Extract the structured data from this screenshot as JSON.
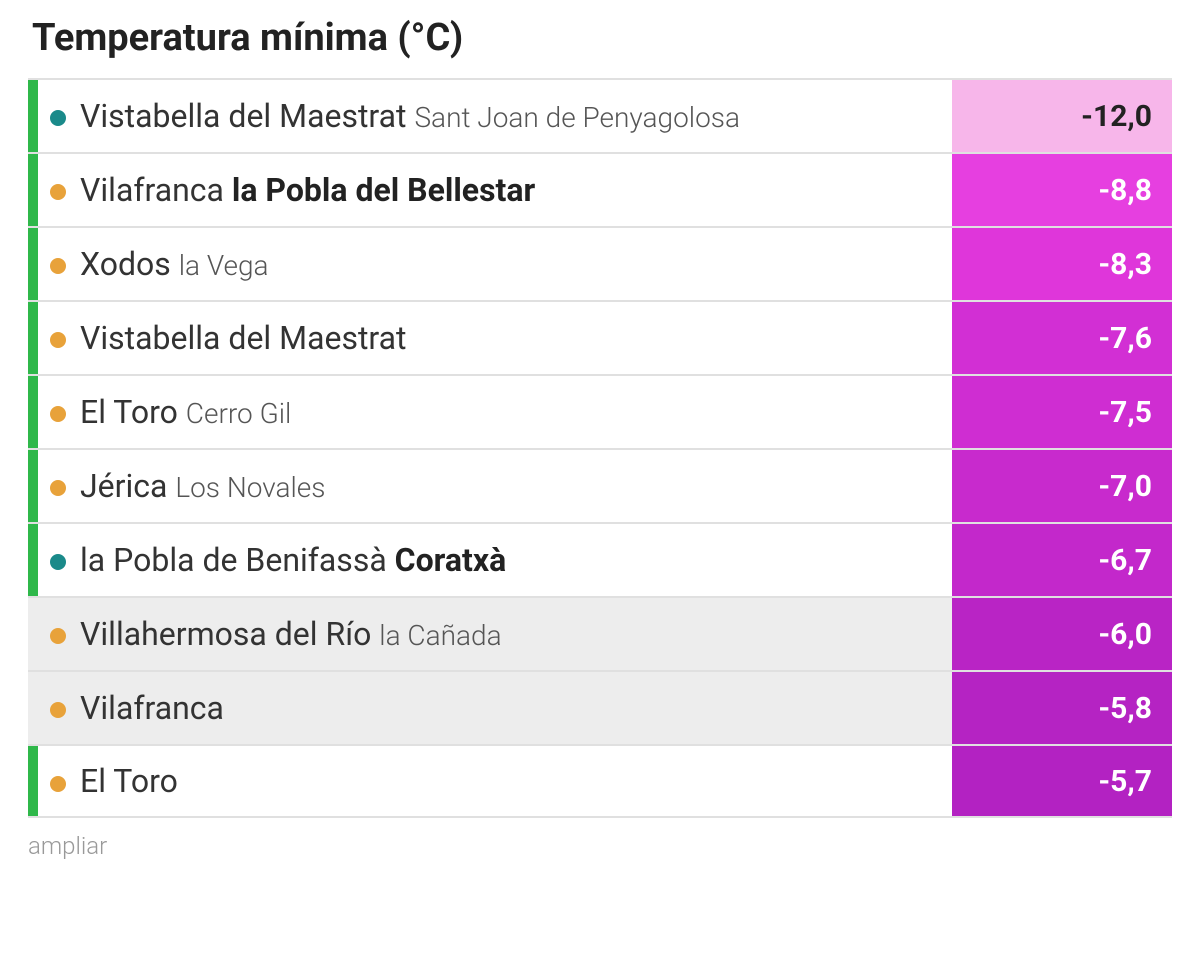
{
  "title": "Temperatura mínima (°C)",
  "footer": "ampliar",
  "colors": {
    "accent_green": "#2fb84a",
    "accent_none": "transparent",
    "bullet_teal": "#1a8a8a",
    "bullet_orange": "#e8a23a",
    "row_bg_white": "#ffffff",
    "row_bg_gray": "#ededed",
    "value_text_dark": "#222222",
    "value_text_white": "#ffffff"
  },
  "value_cell_palette_note": "lighter pink for coldest, darkening magenta toward warmer",
  "rows": [
    {
      "accent": "#2fb84a",
      "bullet": "#1a8a8a",
      "row_bg": "#ffffff",
      "main": "Vistabella del Maestrat",
      "sub": "Sant Joan de Penyagolosa",
      "sub_bold": false,
      "value": "-12,0",
      "value_bg": "#f7b6ea",
      "value_fg": "#222222"
    },
    {
      "accent": "#2fb84a",
      "bullet": "#e8a23a",
      "row_bg": "#ffffff",
      "main": "Vilafranca",
      "sub": "la Pobla del Bellestar",
      "sub_bold": true,
      "value": "-8,8",
      "value_bg": "#e63fe0",
      "value_fg": "#ffffff"
    },
    {
      "accent": "#2fb84a",
      "bullet": "#e8a23a",
      "row_bg": "#ffffff",
      "main": "Xodos",
      "sub": "la Vega",
      "sub_bold": false,
      "value": "-8,3",
      "value_bg": "#df36da",
      "value_fg": "#ffffff"
    },
    {
      "accent": "#2fb84a",
      "bullet": "#e8a23a",
      "row_bg": "#ffffff",
      "main": "Vistabella del Maestrat",
      "sub": "",
      "sub_bold": false,
      "value": "-7,6",
      "value_bg": "#d22fd4",
      "value_fg": "#ffffff"
    },
    {
      "accent": "#2fb84a",
      "bullet": "#e8a23a",
      "row_bg": "#ffffff",
      "main": "El Toro",
      "sub": "Cerro Gil",
      "sub_bold": false,
      "value": "-7,5",
      "value_bg": "#cf2dd2",
      "value_fg": "#ffffff"
    },
    {
      "accent": "#2fb84a",
      "bullet": "#e8a23a",
      "row_bg": "#ffffff",
      "main": "Jérica",
      "sub": "Los Novales",
      "sub_bold": false,
      "value": "-7,0",
      "value_bg": "#c82acd",
      "value_fg": "#ffffff"
    },
    {
      "accent": "#2fb84a",
      "bullet": "#1a8a8a",
      "row_bg": "#ffffff",
      "main": "la Pobla de Benifassà",
      "sub": "Coratxà",
      "sub_bold": true,
      "value": "-6,7",
      "value_bg": "#c328cb",
      "value_fg": "#ffffff"
    },
    {
      "accent": "transparent",
      "bullet": "#e8a23a",
      "row_bg": "#ededed",
      "main": "Villahermosa del Río",
      "sub": "la Cañada",
      "sub_bold": false,
      "value": "-6,0",
      "value_bg": "#b924c5",
      "value_fg": "#ffffff"
    },
    {
      "accent": "transparent",
      "bullet": "#e8a23a",
      "row_bg": "#ededed",
      "main": "Vilafranca",
      "sub": "",
      "sub_bold": false,
      "value": "-5,8",
      "value_bg": "#b523c3",
      "value_fg": "#ffffff"
    },
    {
      "accent": "#2fb84a",
      "bullet": "#e8a23a",
      "row_bg": "#ffffff",
      "main": "El Toro",
      "sub": "",
      "sub_bold": false,
      "value": "-5,7",
      "value_bg": "#b322c2",
      "value_fg": "#ffffff"
    }
  ]
}
